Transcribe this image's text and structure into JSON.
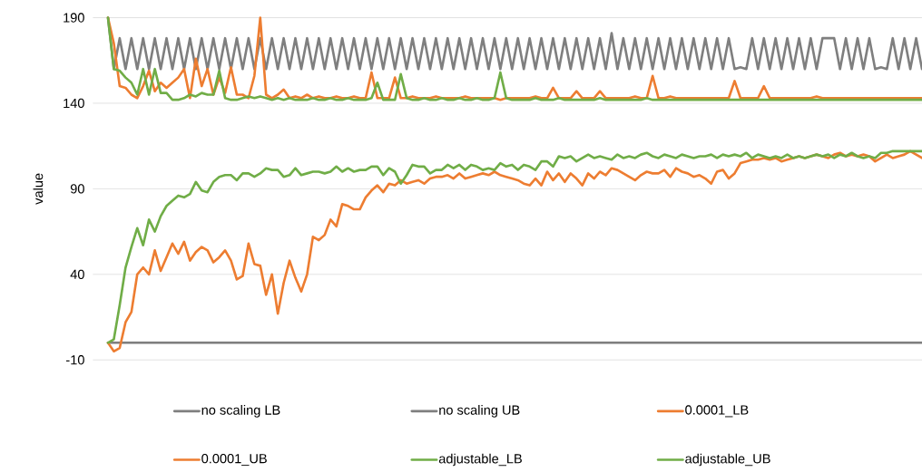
{
  "chart_data": {
    "type": "line",
    "ylabel": "value",
    "ylim": [
      -10,
      190
    ],
    "yticks": [
      -10,
      40,
      90,
      140,
      190
    ],
    "grid": "y",
    "legend": "bottom",
    "marker": "none",
    "line_style": "solid",
    "categories": [
      null,
      null,
      null,
      null,
      null,
      null,
      null,
      null,
      null,
      null,
      null,
      null,
      null,
      null,
      null,
      null,
      null,
      null,
      null,
      null,
      null,
      null,
      null,
      null,
      null,
      null,
      null,
      null,
      null,
      null,
      null,
      null,
      null,
      null,
      null,
      null,
      null,
      null,
      null,
      null,
      null,
      null,
      null,
      null,
      null,
      null,
      null,
      null,
      null,
      null,
      null,
      null,
      null,
      null,
      null,
      null,
      null,
      null,
      null,
      null,
      null,
      null,
      null,
      null,
      null,
      null,
      null,
      null,
      null,
      null,
      null,
      null,
      null,
      null,
      null,
      null,
      null,
      null,
      null,
      null,
      null,
      null,
      null,
      null,
      null,
      null,
      null,
      null,
      null,
      null,
      null,
      null,
      null,
      null,
      null,
      null,
      null,
      null,
      null,
      null,
      null,
      null,
      null,
      null,
      null,
      null,
      null,
      null,
      null,
      null,
      null,
      null,
      null,
      null,
      null,
      null,
      null,
      null,
      null,
      null,
      null,
      null,
      null,
      null,
      null,
      null,
      null,
      null,
      null,
      null,
      null,
      null,
      null,
      null,
      null,
      null,
      null,
      null,
      null,
      null
    ],
    "series": [
      {
        "name": "no scaling LB",
        "color": "#7f7f7f",
        "values": [
          0,
          0,
          0,
          0,
          0,
          0,
          0,
          0,
          0,
          0,
          0,
          0,
          0,
          0,
          0,
          0,
          0,
          0,
          0,
          0,
          0,
          0,
          0,
          0,
          0,
          0,
          0,
          0,
          0,
          0,
          0,
          0,
          0,
          0,
          0,
          0,
          0,
          0,
          0,
          0,
          0,
          0,
          0,
          0,
          0,
          0,
          0,
          0,
          0,
          0,
          0,
          0,
          0,
          0,
          0,
          0,
          0,
          0,
          0,
          0,
          0,
          0,
          0,
          0,
          0,
          0,
          0,
          0,
          0,
          0,
          0,
          0,
          0,
          0,
          0,
          0,
          0,
          0,
          0,
          0,
          0,
          0,
          0,
          0,
          0,
          0,
          0,
          0,
          0,
          0,
          0,
          0,
          0,
          0,
          0,
          0,
          0,
          0,
          0,
          0,
          0,
          0,
          0,
          0,
          0,
          0,
          0,
          0,
          0,
          0,
          0,
          0,
          0,
          0,
          0,
          0,
          0,
          0,
          0,
          0,
          0,
          0,
          0,
          0,
          0,
          0,
          0,
          0,
          0,
          0,
          0,
          0,
          0,
          0,
          0,
          0,
          0,
          0,
          0,
          0
        ]
      },
      {
        "name": "no scaling UB",
        "color": "#7f7f7f",
        "values": [
          190,
          160,
          178,
          160,
          178,
          160,
          178,
          160,
          178,
          160,
          178,
          160,
          178,
          160,
          178,
          160,
          178,
          160,
          178,
          160,
          178,
          160,
          178,
          160,
          178,
          160,
          178,
          160,
          178,
          160,
          178,
          160,
          178,
          160,
          178,
          160,
          178,
          160,
          178,
          160,
          178,
          160,
          178,
          160,
          178,
          160,
          178,
          160,
          178,
          160,
          178,
          160,
          178,
          160,
          178,
          160,
          178,
          160,
          178,
          160,
          178,
          160,
          178,
          160,
          178,
          160,
          178,
          160,
          178,
          160,
          178,
          160,
          178,
          160,
          178,
          160,
          178,
          160,
          178,
          160,
          178,
          160,
          178,
          160,
          178,
          160,
          181,
          160,
          178,
          160,
          178,
          160,
          178,
          160,
          178,
          160,
          178,
          160,
          178,
          160,
          178,
          160,
          178,
          160,
          178,
          160,
          178,
          160,
          161,
          160,
          178,
          160,
          178,
          160,
          178,
          160,
          178,
          160,
          178,
          160,
          178,
          160,
          178,
          178,
          178,
          160,
          178,
          160,
          178,
          160,
          178,
          160,
          161,
          160,
          178,
          160,
          178,
          160,
          178,
          160
        ]
      },
      {
        "name": "0.0001_LB",
        "color": "#ed7d31",
        "values": [
          0,
          -5,
          -3,
          12,
          18,
          40,
          44,
          40,
          54,
          42,
          50,
          58,
          52,
          59,
          48,
          53,
          56,
          54,
          47,
          50,
          54,
          48,
          37,
          39,
          58,
          46,
          45,
          28,
          40,
          17,
          35,
          48,
          38,
          30,
          40,
          62,
          60,
          63,
          72,
          68,
          81,
          80,
          78,
          78,
          85,
          89,
          92,
          88,
          93,
          92,
          95,
          93,
          94,
          95,
          93,
          96,
          97,
          97,
          98,
          96,
          99,
          96,
          97,
          98,
          99,
          98,
          100,
          98,
          97,
          96,
          95,
          93,
          92,
          96,
          92,
          100,
          95,
          99,
          94,
          99,
          96,
          92,
          99,
          96,
          100,
          98,
          102,
          101,
          99,
          97,
          95,
          98,
          100,
          99,
          99,
          101,
          97,
          102,
          100,
          99,
          97,
          98,
          96,
          93,
          100,
          101,
          96,
          99,
          105,
          106,
          107,
          107,
          108,
          107,
          108,
          106,
          107,
          108,
          109,
          108,
          109,
          110,
          109,
          108,
          110,
          111,
          109,
          110,
          109,
          110,
          109,
          106,
          108,
          110,
          108,
          109,
          110,
          112,
          110,
          108
        ]
      },
      {
        "name": "0.0001_UB",
        "color": "#ed7d31",
        "values": [
          190,
          175,
          150,
          149,
          145,
          143,
          150,
          159,
          147,
          152,
          149,
          152,
          155,
          160,
          143,
          166,
          150,
          160,
          145,
          155,
          146,
          161,
          145,
          145,
          143,
          156,
          190,
          145,
          143,
          145,
          148,
          143,
          144,
          143,
          145,
          143,
          144,
          143,
          143,
          144,
          143,
          143,
          144,
          143,
          143,
          158,
          143,
          143,
          143,
          155,
          143,
          143,
          144,
          143,
          143,
          143,
          144,
          143,
          143,
          143,
          143,
          144,
          143,
          143,
          143,
          143,
          143,
          142,
          143,
          143,
          143,
          143,
          143,
          144,
          143,
          143,
          149,
          143,
          143,
          143,
          147,
          143,
          143,
          143,
          147,
          143,
          143,
          143,
          143,
          143,
          144,
          143,
          143,
          156,
          143,
          143,
          144,
          143,
          143,
          143,
          143,
          143,
          143,
          143,
          143,
          143,
          143,
          153,
          143,
          143,
          143,
          143,
          150,
          143,
          143,
          143,
          143,
          143,
          143,
          143,
          143,
          144,
          143,
          143,
          143,
          143,
          143,
          143,
          143,
          143,
          143,
          143,
          143,
          143,
          143,
          143,
          143,
          143,
          143,
          143
        ]
      },
      {
        "name": "adjustable_LB",
        "color": "#70ad47",
        "values": [
          0,
          2,
          22,
          44,
          56,
          67,
          57,
          72,
          65,
          74,
          80,
          83,
          86,
          85,
          87,
          94,
          89,
          88,
          94,
          97,
          98,
          98,
          95,
          99,
          99,
          97,
          99,
          102,
          101,
          101,
          97,
          98,
          102,
          98,
          99,
          100,
          100,
          99,
          100,
          103,
          100,
          102,
          100,
          101,
          101,
          103,
          103,
          98,
          102,
          100,
          93,
          98,
          104,
          103,
          103,
          99,
          101,
          101,
          104,
          102,
          104,
          101,
          104,
          103,
          101,
          102,
          101,
          105,
          103,
          104,
          101,
          104,
          103,
          101,
          106,
          106,
          103,
          109,
          108,
          109,
          106,
          108,
          110,
          108,
          109,
          108,
          107,
          110,
          108,
          109,
          108,
          110,
          111,
          109,
          108,
          110,
          109,
          108,
          110,
          109,
          108,
          109,
          109,
          110,
          108,
          110,
          109,
          110,
          109,
          111,
          108,
          110,
          109,
          108,
          109,
          108,
          110,
          108,
          109,
          108,
          109,
          110,
          109,
          110,
          108,
          110,
          109,
          111,
          109,
          108,
          109,
          108,
          111,
          111,
          112,
          112,
          112,
          112,
          112,
          112
        ]
      },
      {
        "name": "adjustable_UB",
        "color": "#70ad47",
        "values": [
          190,
          160,
          159,
          155,
          152,
          145,
          160,
          145,
          160,
          146,
          146,
          142,
          142,
          143,
          145,
          144,
          146,
          145,
          145,
          159,
          143,
          142,
          142,
          143,
          144,
          143,
          144,
          143,
          142,
          143,
          142,
          143,
          142,
          142,
          142,
          143,
          142,
          142,
          143,
          142,
          142,
          143,
          142,
          142,
          142,
          143,
          152,
          142,
          142,
          142,
          157,
          143,
          142,
          142,
          143,
          142,
          142,
          143,
          142,
          142,
          143,
          142,
          142,
          143,
          142,
          142,
          143,
          158,
          143,
          142,
          142,
          142,
          142,
          143,
          142,
          142,
          142,
          143,
          142,
          142,
          142,
          142,
          142,
          142,
          143,
          142,
          142,
          142,
          142,
          142,
          142,
          142,
          143,
          142,
          142,
          142,
          142,
          142,
          142,
          142,
          142,
          142,
          142,
          142,
          142,
          142,
          142,
          142,
          142,
          142,
          142,
          142,
          142,
          142,
          142,
          142,
          142,
          142,
          142,
          142,
          142,
          142,
          142,
          142,
          142,
          142,
          142,
          142,
          142,
          142,
          142,
          142,
          142,
          142,
          142,
          142,
          142,
          142,
          142,
          142
        ]
      }
    ]
  }
}
